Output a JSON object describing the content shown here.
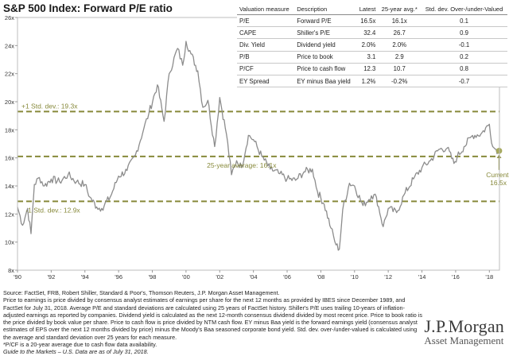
{
  "chart_data": {
    "type": "line",
    "title": "S&P 500 Index: Forward P/E ratio",
    "xlim": [
      1990.0,
      2018.6
    ],
    "ylim": [
      8,
      26
    ],
    "y_ticks": [
      8,
      10,
      12,
      14,
      16,
      18,
      20,
      22,
      24,
      26
    ],
    "y_tick_labels": [
      "8x",
      "10x",
      "12x",
      "14x",
      "16x",
      "18x",
      "20x",
      "22x",
      "24x",
      "26x"
    ],
    "x_ticks": [
      1990,
      1992,
      1994,
      1996,
      1998,
      2000,
      2002,
      2004,
      2006,
      2008,
      2010,
      2012,
      2014,
      2016,
      2018
    ],
    "x_tick_labels": [
      "'90",
      "'92",
      "'94",
      "'96",
      "'98",
      "'00",
      "'02",
      "'04",
      "'06",
      "'08",
      "'10",
      "'12",
      "'14",
      "'16",
      "'18"
    ],
    "series": [
      {
        "name": "Forward P/E",
        "color": "#8c8c8c",
        "x": [
          1990.0,
          1990.3,
          1990.6,
          1990.8,
          1991.0,
          1991.3,
          1991.6,
          1992.0,
          1992.5,
          1993.0,
          1993.5,
          1994.0,
          1994.3,
          1994.7,
          1995.0,
          1995.5,
          1996.0,
          1996.5,
          1997.0,
          1997.5,
          1997.8,
          1998.3,
          1998.7,
          1999.0,
          1999.5,
          1999.8,
          2000.0,
          2000.3,
          2000.7,
          2001.0,
          2001.3,
          2001.7,
          2002.0,
          2002.4,
          2002.7,
          2003.0,
          2003.3,
          2003.7,
          2004.0,
          2004.5,
          2005.0,
          2005.5,
          2006.0,
          2006.5,
          2007.0,
          2007.5,
          2007.8,
          2008.2,
          2008.6,
          2008.9,
          2009.1,
          2009.3,
          2009.7,
          2010.0,
          2010.5,
          2011.0,
          2011.3,
          2011.7,
          2012.0,
          2012.5,
          2013.0,
          2013.5,
          2014.0,
          2014.5,
          2015.0,
          2015.5,
          2015.9,
          2016.1,
          2016.5,
          2017.0,
          2017.5,
          2018.0,
          2018.2,
          2018.4,
          2018.58
        ],
        "y": [
          12.5,
          11.2,
          12.4,
          10.6,
          14.1,
          14.6,
          14.0,
          14.5,
          14.3,
          14.8,
          14.3,
          14.1,
          13.2,
          12.5,
          12.4,
          13.2,
          14.7,
          15.1,
          16.2,
          18.1,
          19.2,
          21.2,
          18.6,
          22.0,
          23.8,
          22.6,
          24.3,
          23.4,
          22.2,
          19.6,
          20.1,
          16.8,
          20.3,
          17.7,
          14.8,
          15.8,
          15.3,
          17.6,
          17.3,
          16.1,
          15.2,
          14.9,
          14.5,
          14.4,
          15.0,
          15.2,
          13.6,
          12.7,
          11.0,
          9.8,
          9.5,
          12.3,
          14.2,
          14.0,
          12.6,
          13.3,
          13.2,
          11.1,
          12.4,
          12.1,
          13.5,
          14.5,
          15.3,
          15.8,
          16.6,
          16.7,
          15.6,
          16.1,
          16.8,
          17.6,
          17.7,
          18.4,
          16.8,
          16.6,
          16.5
        ]
      }
    ],
    "reference_lines": [
      {
        "label": "+1 Std. dev.: 19.3x",
        "value": 19.3
      },
      {
        "label": "25-year average: 16.1x",
        "value": 16.1
      },
      {
        "label": "-1 Std. dev.: 12.9x",
        "value": 12.9
      }
    ],
    "current": {
      "label": "Current:",
      "value_label": "16.5x",
      "value": 16.5
    },
    "colors": {
      "line": "#8c8c8c",
      "reference": "#87893a",
      "current_dot": "#a5a85a"
    }
  },
  "summary_table": {
    "headers": [
      "Valuation measure",
      "Description",
      "Latest",
      "25-year avg.*",
      "Std. dev. Over-/under-Valued"
    ],
    "rows": [
      [
        "P/E",
        "Forward P/E",
        "16.5x",
        "16.1x",
        "0.1"
      ],
      [
        "CAPE",
        "Shiller's P/E",
        "32.4",
        "26.7",
        "0.9"
      ],
      [
        "Div. Yield",
        "Dividend yield",
        "2.0%",
        "2.0%",
        "-0.1"
      ],
      [
        "P/B",
        "Price to book",
        "3.1",
        "2.9",
        "0.2"
      ],
      [
        "P/CF",
        "Price to cash flow",
        "12.3",
        "10.7",
        "0.8"
      ],
      [
        "EY Spread",
        "EY minus Baa yield",
        "1.2%",
        "-0.2%",
        "-0.7"
      ]
    ]
  },
  "footer": {
    "source": "Source: FactSet, FRB, Robert Shiller, Standard & Poor's, Thomson Reuters, J.P. Morgan Asset Management.",
    "notes": "Price to earnings is price divided by consensus analyst estimates of earnings per share for the next 12 months as provided by IBES since December 1989, and FactSet for July 31, 2018. Average P/E and standard deviations are calculated using 25 years of FactSet history. Shiller's P/E uses trailing 10-years of inflation-adjusted earnings as reported by companies. Dividend yield is calculated as the next 12-month consensus dividend divided by most recent price. Price to book ratio is the price divided by book value per share. Price to cash flow is price divided by NTM cash flow. EY minus Baa yield is the forward earnings yield (consensus analyst estimates of EPS over the next 12 months divided by price) minus the Moody's Baa seasoned corporate bond yield. Std. dev. over-/under-valued is calculated using the average and standard deviation over 25 years for each measure.",
    "pcf_note": "*P/CF is a 20-year average due to cash flow data availability.",
    "guide": "Guide to the Markets – U.S. Data are as of July 31, 2018."
  },
  "logo": {
    "name": "J.P.Morgan",
    "subtitle": "Asset Management"
  }
}
